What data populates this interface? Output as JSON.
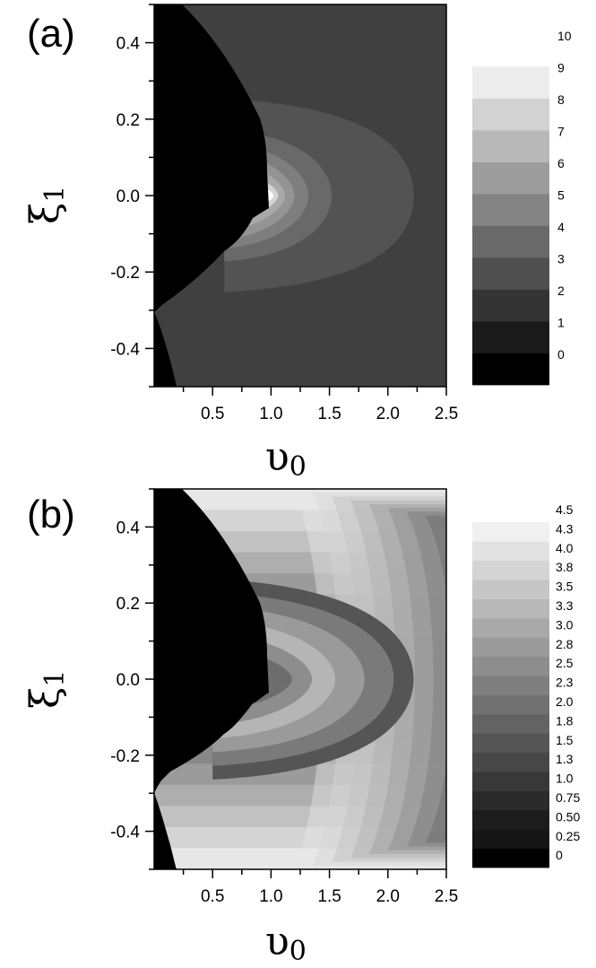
{
  "chart_data": [
    {
      "panel_label": "(a)",
      "type": "heatmap",
      "xlabel": "υ",
      "xlabel_sub": "0",
      "ylabel": "ξ",
      "ylabel_sub": "1",
      "xlim": [
        0.0,
        2.5
      ],
      "ylim": [
        -0.5,
        0.5
      ],
      "x_ticks": [
        0.5,
        1.0,
        1.5,
        2.0,
        2.5
      ],
      "x_tick_labels": [
        "0.5",
        "1.0",
        "1.5",
        "2.0",
        "2.5"
      ],
      "y_ticks": [
        0.4,
        0.2,
        0.0,
        -0.2,
        -0.4
      ],
      "y_tick_labels": [
        "0.4",
        "0.2",
        "0.0",
        "-0.2",
        "-0.4"
      ],
      "colorbar_levels": [
        0,
        1,
        2,
        3,
        4,
        5,
        6,
        7,
        8,
        9,
        10
      ],
      "colorbar_labels": [
        "10",
        "9",
        "8",
        "7",
        "6",
        "5",
        "4",
        "3",
        "2",
        "1",
        "0"
      ],
      "background_level": 1,
      "contours": [
        {
          "level": 2,
          "vertex_x": 2.22,
          "reach": 0.22
        },
        {
          "level": 3,
          "vertex_x": 1.52,
          "reach": 0.15
        },
        {
          "level": 4,
          "vertex_x": 1.32,
          "reach": 0.12
        },
        {
          "level": 5,
          "vertex_x": 1.2,
          "reach": 0.1
        },
        {
          "level": 6,
          "vertex_x": 1.12,
          "reach": 0.08
        },
        {
          "level": 8,
          "vertex_x": 1.06,
          "reach": 0.06
        },
        {
          "level": 10,
          "vertex_x": 1.02,
          "reach": 0.04
        }
      ]
    },
    {
      "panel_label": "(b)",
      "type": "heatmap",
      "xlabel": "υ",
      "xlabel_sub": "0",
      "ylabel": "ξ",
      "ylabel_sub": "1",
      "xlim": [
        0.0,
        2.5
      ],
      "ylim": [
        -0.5,
        0.5
      ],
      "x_ticks": [
        0.5,
        1.0,
        1.5,
        2.0,
        2.5
      ],
      "x_tick_labels": [
        "0.5",
        "1.0",
        "1.5",
        "2.0",
        "2.5"
      ],
      "y_ticks": [
        0.4,
        0.2,
        0.0,
        -0.2,
        -0.4
      ],
      "y_tick_labels": [
        "0.4",
        "0.2",
        "0.0",
        "-0.2",
        "-0.4"
      ],
      "colorbar_levels": [
        0,
        0.25,
        0.5,
        0.75,
        1.0,
        1.3,
        1.5,
        1.8,
        2.0,
        2.3,
        2.5,
        2.8,
        3.0,
        3.3,
        3.5,
        3.8,
        4.0,
        4.3,
        4.5
      ],
      "colorbar_labels": [
        "4.5",
        "4.3",
        "4.0",
        "3.8",
        "3.5",
        "3.3",
        "3.0",
        "2.8",
        "2.5",
        "2.3",
        "2.0",
        "1.8",
        "1.5",
        "1.3",
        "1.0",
        "0.75",
        "0.50",
        "0.25",
        "0"
      ]
    }
  ]
}
